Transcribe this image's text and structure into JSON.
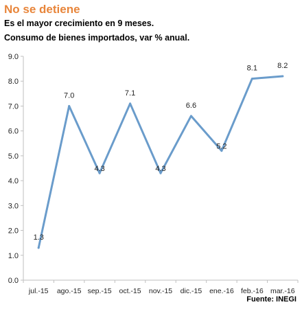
{
  "header": {
    "title": "No se detiene",
    "subtitle1": "Es el mayor crecimiento en 9 meses.",
    "subtitle2": "Consumo de bienes importados, var % anual."
  },
  "source": "Fuente: INEGI",
  "chart_data": {
    "type": "line",
    "title": "No se detiene",
    "xlabel": "",
    "ylabel": "",
    "categories": [
      "jul.-15",
      "ago.-15",
      "sep.-15",
      "oct.-15",
      "nov.-15",
      "dic.-15",
      "ene.-16",
      "feb.-16",
      "mar.-16"
    ],
    "series": [
      {
        "values": [
          1.3,
          7.0,
          4.3,
          7.1,
          4.3,
          6.6,
          5.2,
          8.1,
          8.2
        ]
      }
    ],
    "ylim": [
      0,
      9
    ],
    "yticks": [
      "0.0",
      "1.0",
      "2.0",
      "3.0",
      "4.0",
      "5.0",
      "6.0",
      "7.0",
      "8.0",
      "9.0"
    ],
    "data_labels": [
      "1.3",
      "7.0",
      "4.3",
      "7.1",
      "4.3",
      "6.6",
      "5.2",
      "8.1",
      "8.2"
    ],
    "line_color": "#6a9ccb",
    "title_color": "#e8853a",
    "grid": false,
    "legend": "none"
  }
}
